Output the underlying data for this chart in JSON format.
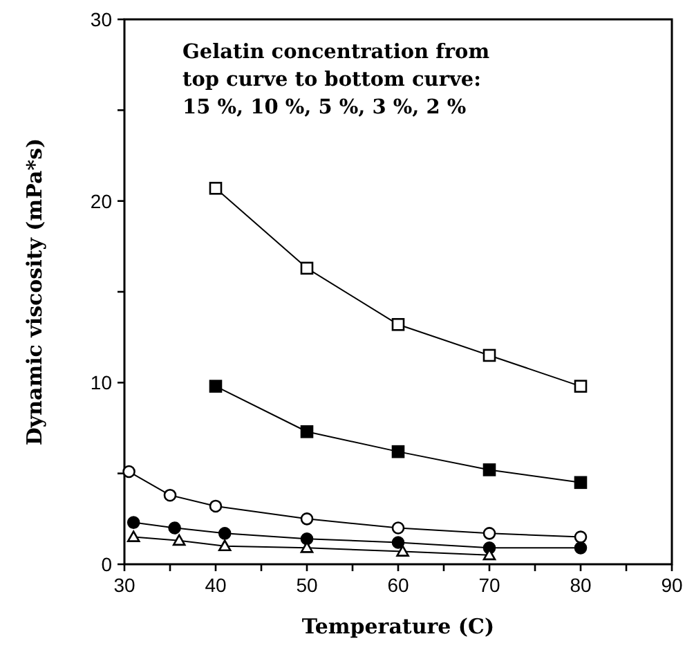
{
  "chart_data": {
    "type": "line",
    "xlabel": "Temperature (C)",
    "ylabel": "Dynamic viscosity (mPa*s)",
    "annotations": [
      "Gelatin concentration from\ntop curve to bottom curve:\n15 %, 10 %, 5 %, 3 %, 2 %"
    ],
    "xlim": [
      30,
      90
    ],
    "xticks": [
      30,
      {
        "value": 35,
        "label": null
      },
      40,
      {
        "value": 45,
        "label": null
      },
      50,
      {
        "value": 55,
        "label": null
      },
      60,
      {
        "value": 65,
        "label": null
      },
      70,
      {
        "value": 75,
        "label": null
      },
      80,
      {
        "value": 85,
        "label": null
      },
      90
    ],
    "ylim": [
      0,
      30
    ],
    "yticks": [
      0,
      {
        "value": 5,
        "label": null
      },
      10,
      {
        "value": 15,
        "label": null
      },
      20,
      {
        "value": 25,
        "label": null
      },
      30
    ],
    "grid": false,
    "series": [
      {
        "color": "#000000",
        "marker": "square",
        "x": [
          40,
          50,
          60,
          70,
          80
        ],
        "values": [
          20.7,
          16.3,
          13.2,
          11.5,
          9.8
        ]
      },
      {
        "color": "#000000",
        "marker": "square",
        "x": [
          40,
          50,
          60,
          70,
          80
        ],
        "values": [
          9.8,
          7.3,
          6.2,
          5.2,
          4.5
        ]
      },
      {
        "color": "#000000",
        "marker": "circle",
        "x": [
          30.5,
          35,
          40,
          50,
          60,
          70,
          80
        ],
        "values": [
          5.1,
          3.8,
          3.2,
          2.5,
          2.0,
          1.7,
          1.5
        ]
      },
      {
        "color": "#000000",
        "marker": "circle",
        "x": [
          31,
          35.5,
          41,
          50,
          60,
          70,
          80
        ],
        "values": [
          2.3,
          2.0,
          1.7,
          1.4,
          1.2,
          0.9,
          0.9
        ]
      },
      {
        "color": "#000000",
        "marker": "triangle",
        "x": [
          31,
          36,
          41,
          50,
          60.5,
          70
        ],
        "values": [
          1.5,
          1.3,
          1.0,
          0.9,
          0.7,
          0.5
        ]
      }
    ]
  }
}
